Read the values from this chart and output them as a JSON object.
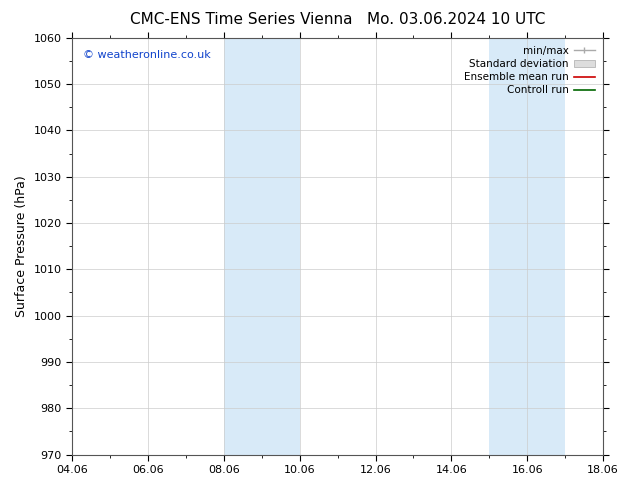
{
  "title_left": "CMC-ENS Time Series Vienna",
  "title_right": "Mo. 03.06.2024 10 UTC",
  "ylabel": "Surface Pressure (hPa)",
  "ylim": [
    970,
    1060
  ],
  "yticks": [
    970,
    980,
    990,
    1000,
    1010,
    1020,
    1030,
    1040,
    1050,
    1060
  ],
  "xlim": [
    0,
    14
  ],
  "xtick_labels": [
    "04.06",
    "06.06",
    "08.06",
    "10.06",
    "12.06",
    "14.06",
    "16.06",
    "18.06"
  ],
  "xtick_positions": [
    0,
    2,
    4,
    6,
    8,
    10,
    12,
    14
  ],
  "shaded_bands": [
    {
      "x_start": 4,
      "x_end": 6,
      "color": "#d8eaf8"
    },
    {
      "x_start": 11,
      "x_end": 13,
      "color": "#d8eaf8"
    }
  ],
  "watermark": "© weatheronline.co.uk",
  "watermark_color": "#1144cc",
  "background_color": "#ffffff",
  "legend_entries": [
    {
      "label": "min/max",
      "type": "minmax",
      "color": "#aaaaaa"
    },
    {
      "label": "Standard deviation",
      "type": "stddev",
      "color": "#cccccc"
    },
    {
      "label": "Ensemble mean run",
      "type": "line",
      "color": "#cc0000"
    },
    {
      "label": "Controll run",
      "type": "line",
      "color": "#006600"
    }
  ],
  "title_fontsize": 11,
  "ylabel_fontsize": 9,
  "tick_fontsize": 8,
  "legend_fontsize": 7.5,
  "watermark_fontsize": 8
}
